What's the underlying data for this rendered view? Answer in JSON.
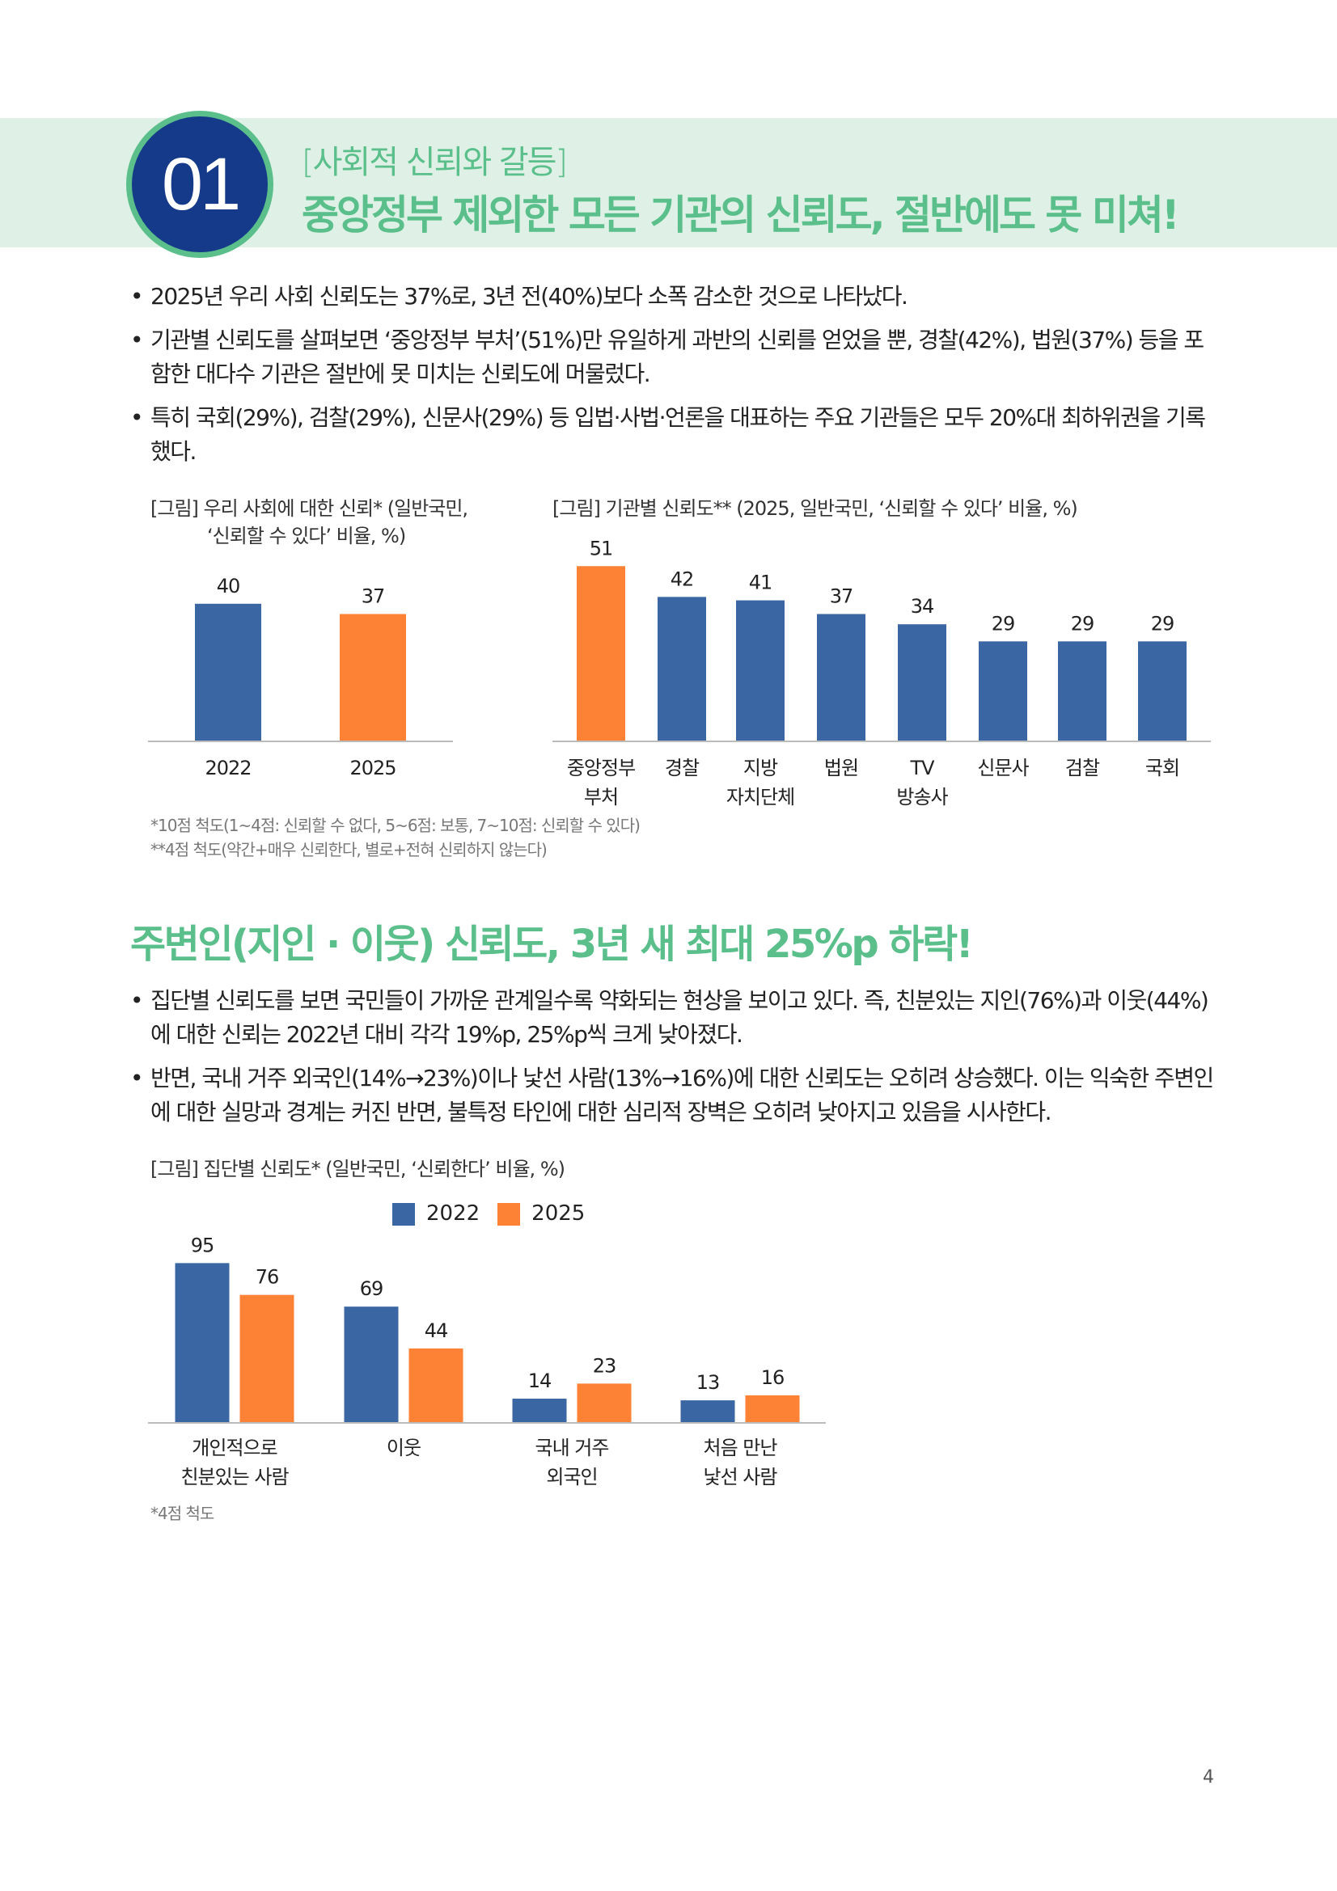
{
  "header": {
    "number": "01",
    "subtitle": "[사회적 신뢰와 갈등]",
    "title": "중앙정부 제외한 모든 기관의 신뢰도, 절반에도 못 미쳐!"
  },
  "section1": {
    "bullets": [
      "2025년 우리 사회 신뢰도는 37%로, 3년 전(40%)보다 소폭 감소한 것으로 나타났다.",
      "기관별 신뢰도를 살펴보면 ‘중앙정부 부처’(51%)만 유일하게 과반의 신뢰를 얻었을 뿐, 경찰(42%), 법원(37%) 등을 포함한 대다수 기관은 절반에 못 미치는 신뢰도에 머물렀다.",
      "특히 국회(29%), 검찰(29%), 신문사(29%) 등 입법·사법·언론을 대표하는 주요 기관들은 모두 20%대 최하위권을 기록했다."
    ]
  },
  "colors": {
    "blue": "#3a67a3",
    "orange": "#fd8235",
    "green": "#5abf8a",
    "band": "#dff1e6",
    "navy": "#163a8a"
  },
  "chart_data": [
    {
      "type": "bar",
      "title": "[그림] 우리 사회에 대한 신뢰* (일반국민, ‘신뢰할 수 있다’ 비율, %)",
      "title_lines": [
        "[그림] 우리 사회에 대한 신뢰* (일반국민,",
        "‘신뢰할 수 있다’ 비율, %)"
      ],
      "categories": [
        "2022",
        "2025"
      ],
      "values": [
        40,
        37
      ],
      "highlight": [
        false,
        true
      ],
      "grid": false
    },
    {
      "type": "bar",
      "title": "[그림] 기관별 신뢰도** (2025, 일반국민, ‘신뢰할 수 있다’ 비율, %)",
      "categories": [
        [
          "중앙정부",
          "부처"
        ],
        [
          "경찰"
        ],
        [
          "지방",
          "자치단체"
        ],
        [
          "법원"
        ],
        [
          "TV",
          "방송사"
        ],
        [
          "신문사"
        ],
        [
          "검찰"
        ],
        [
          "국회"
        ]
      ],
      "values": [
        51,
        42,
        41,
        37,
        34,
        29,
        29,
        29
      ],
      "highlight": [
        true,
        false,
        false,
        false,
        false,
        false,
        false,
        false
      ],
      "grid": false
    },
    {
      "type": "bar",
      "title": "[그림] 집단별 신뢰도* (일반국민, ‘신뢰한다’ 비율, %)",
      "categories": [
        [
          "개인적으로",
          "친분있는 사람"
        ],
        [
          "이웃"
        ],
        [
          "국내 거주",
          "외국인"
        ],
        [
          "처음 만난",
          "낯선 사람"
        ]
      ],
      "series": [
        {
          "name": "2022",
          "values": [
            95,
            69,
            14,
            13
          ]
        },
        {
          "name": "2025",
          "values": [
            76,
            44,
            23,
            16
          ]
        }
      ],
      "legend": "top",
      "grid": false
    }
  ],
  "footnotes1": [
    "*10점 척도(1~4점: 신뢰할 수 없다, 5~6점: 보통, 7~10점: 신뢰할 수 있다)",
    "**4점 척도(약간+매우 신뢰한다, 별로+전혀 신뢰하지 않는다)"
  ],
  "section2": {
    "title": "주변인(지인 · 이웃) 신뢰도, 3년 새 최대 25%p 하락!",
    "bullets": [
      "집단별 신뢰도를 보면 국민들이 가까운 관계일수록 약화되는 현상을 보이고 있다. 즉, 친분있는 지인(76%)과 이웃(44%)에 대한 신뢰는 2022년 대비 각각 19%p, 25%p씩 크게 낮아졌다.",
      "반면, 국내 거주 외국인(14%→23%)이나 낯선 사람(13%→16%)에 대한 신뢰도는 오히려 상승했다. 이는 익숙한 주변인에 대한 실망과 경계는 커진 반면, 불특정 타인에 대한 심리적 장벽은 오히려 낮아지고 있음을 시사한다."
    ]
  },
  "footnotes2": [
    "*4점 척도"
  ],
  "page_number": "4"
}
